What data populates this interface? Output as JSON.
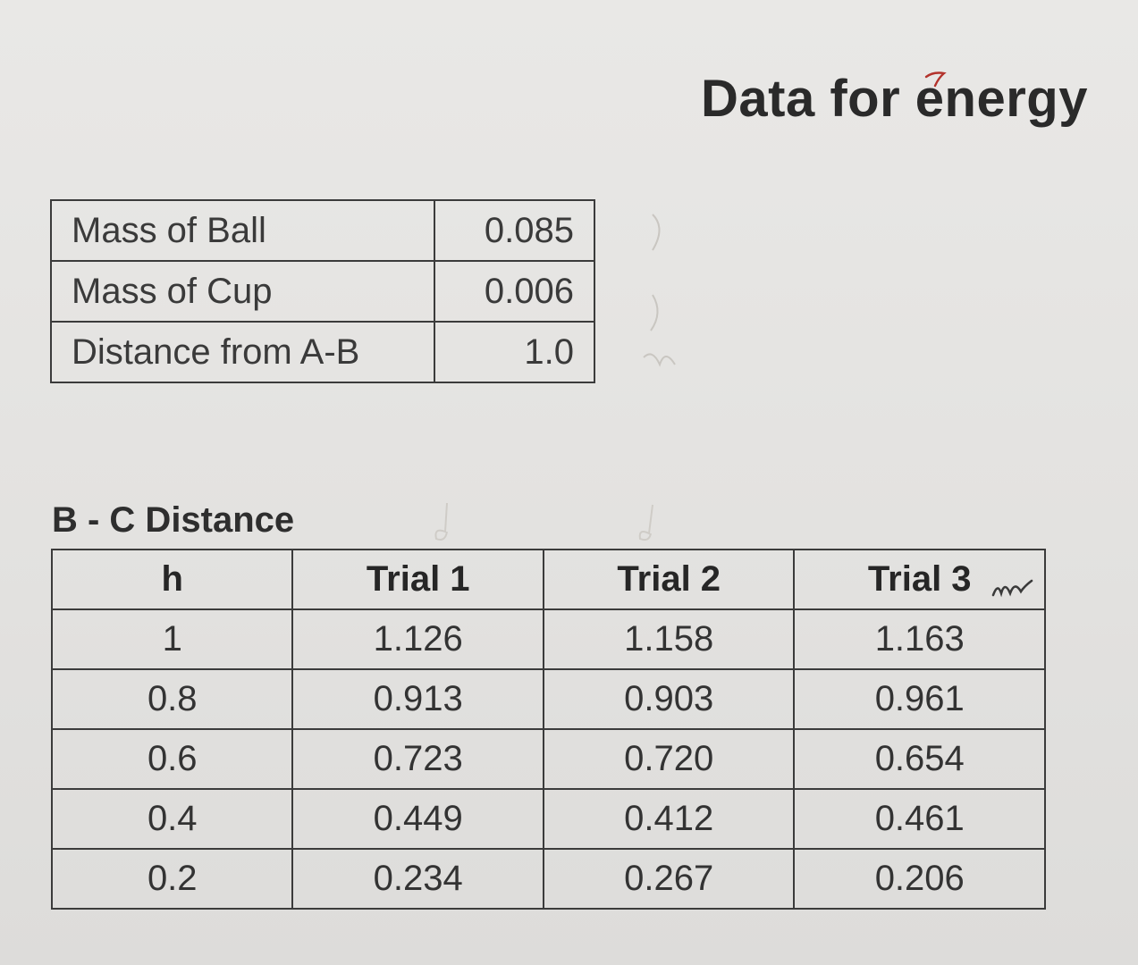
{
  "title": "Data for energy",
  "constants": {
    "rows": [
      {
        "label": "Mass of Ball",
        "value": "0.085"
      },
      {
        "label": "Mass of Cup",
        "value": "0.006"
      },
      {
        "label": "Distance from A-B",
        "value": "1.0"
      }
    ]
  },
  "trials_table": {
    "caption": "B - C Distance",
    "headers": [
      "h",
      "Trial 1",
      "Trial 2",
      "Trial 3"
    ],
    "rows": [
      [
        "1",
        "1.126",
        "1.158",
        "1.163"
      ],
      [
        "0.8",
        "0.913",
        "0.903",
        "0.961"
      ],
      [
        "0.6",
        "0.723",
        "0.720",
        "0.654"
      ],
      [
        "0.4",
        "0.449",
        "0.412",
        "0.461"
      ],
      [
        "0.2",
        "0.234",
        "0.267",
        "0.206"
      ]
    ]
  },
  "colors": {
    "paper": "#e4e3e1",
    "ink": "#2e2e2e",
    "pen_red": "#b3332c",
    "pencil": "#bdbab5"
  }
}
